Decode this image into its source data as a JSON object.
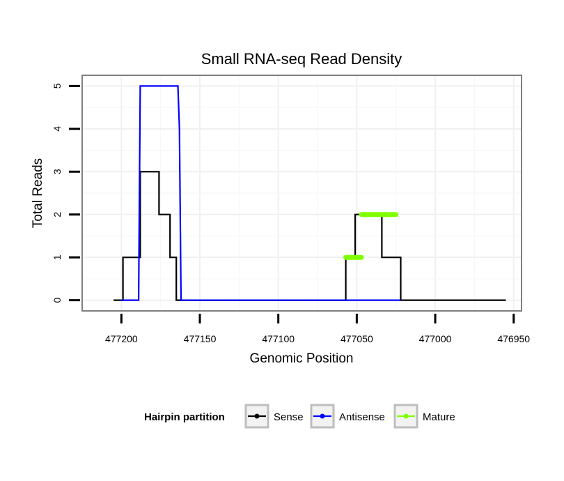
{
  "chart_data": {
    "type": "line",
    "title": "Small RNA-seq Read Density",
    "xlabel": "Genomic Position",
    "ylabel": "Total Reads",
    "x_reversed": true,
    "xlim": [
      477225,
      476945
    ],
    "ylim": [
      -0.25,
      5.25
    ],
    "xticks": [
      477200,
      477150,
      477100,
      477050,
      477000,
      476950
    ],
    "xtick_labels": [
      "477200",
      "477150",
      "477100",
      "477050",
      "477000",
      "476950"
    ],
    "yticks": [
      0,
      1,
      2,
      3,
      4,
      5
    ],
    "ytick_labels": [
      "0",
      "1",
      "2",
      "3",
      "4",
      "5"
    ],
    "grid": true,
    "legend": {
      "title": "Hairpin partition",
      "position": "bottom",
      "entries": [
        {
          "name": "Sense",
          "color": "#000000"
        },
        {
          "name": "Antisense",
          "color": "#0000ff"
        },
        {
          "name": "Mature",
          "color": "#7fff00"
        }
      ]
    },
    "series": [
      {
        "name": "Sense",
        "color": "#000000",
        "x": [
          477205,
          477199,
          477199,
          477188,
          477188,
          477176,
          477176,
          477169,
          477169,
          477165,
          477165,
          477162,
          477162,
          477057,
          477057,
          477051,
          477051,
          477034,
          477034,
          477022,
          477022,
          476955
        ],
        "y": [
          0,
          0,
          1,
          1,
          3,
          3,
          2,
          2,
          1,
          1,
          0,
          0,
          0,
          0,
          1,
          1,
          2,
          2,
          1,
          1,
          0,
          0
        ]
      },
      {
        "name": "Antisense",
        "color": "#0000ff",
        "x": [
          477200,
          477189,
          477188,
          477164,
          477163,
          477162,
          477022
        ],
        "y": [
          0,
          0,
          5,
          5,
          4,
          0,
          0
        ]
      },
      {
        "name": "Mature",
        "color": "#7fff00",
        "x": [
          477057,
          477047,
          477047,
          477047,
          477025
        ],
        "y": [
          1,
          1,
          null,
          2,
          2
        ]
      }
    ]
  }
}
